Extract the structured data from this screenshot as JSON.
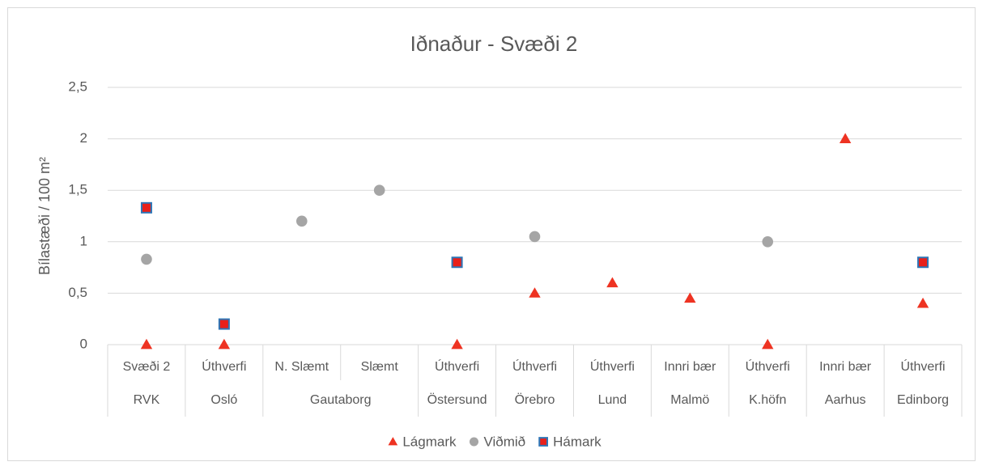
{
  "chart_data": {
    "type": "marker_line",
    "title": "Iðnaður - Svæði 2",
    "y_label": "Bílastæði / 100 m²",
    "categories": [
      "Svæði 2",
      "Úthverfi",
      "N. Slæmt",
      "Slæmt",
      "Úthverfi",
      "Úthverfi",
      "Úthverfi",
      "Innri bær",
      "Úthverfi",
      "Innri bær",
      "Úthverfi"
    ],
    "category_groups": [
      "RVK",
      "Osló",
      "Gautaborg",
      null,
      "Östersund",
      "Örebro",
      "Lund",
      "Malmö",
      "K.höfn",
      "Aarhus",
      "Edinborg"
    ],
    "series": [
      {
        "name": "Lágmark",
        "marker": "triangle",
        "color": "#ee3322",
        "values": [
          0,
          0,
          null,
          null,
          0,
          0.5,
          0.6,
          0.45,
          0,
          2,
          0.4
        ]
      },
      {
        "name": "Viðmið",
        "marker": "circle",
        "color": "#a5a5a5",
        "values": [
          0.83,
          null,
          1.2,
          1.5,
          null,
          1.05,
          null,
          null,
          1.0,
          null,
          null
        ]
      },
      {
        "name": "Hámark",
        "marker": "square",
        "color": "#e8201a",
        "edgecolor": "#2e75b6",
        "values": [
          1.33,
          0.2,
          null,
          null,
          0.8,
          null,
          null,
          null,
          null,
          null,
          0.8
        ]
      }
    ],
    "ylim": [
      0,
      2.5
    ],
    "yticks": [
      0,
      {
        "value": 0.5,
        "label": "0,5"
      },
      1,
      {
        "value": 1.5,
        "label": "1,5"
      },
      2,
      {
        "value": 2.5,
        "label": "2,5"
      }
    ],
    "grid": true,
    "legend": "bottom"
  }
}
